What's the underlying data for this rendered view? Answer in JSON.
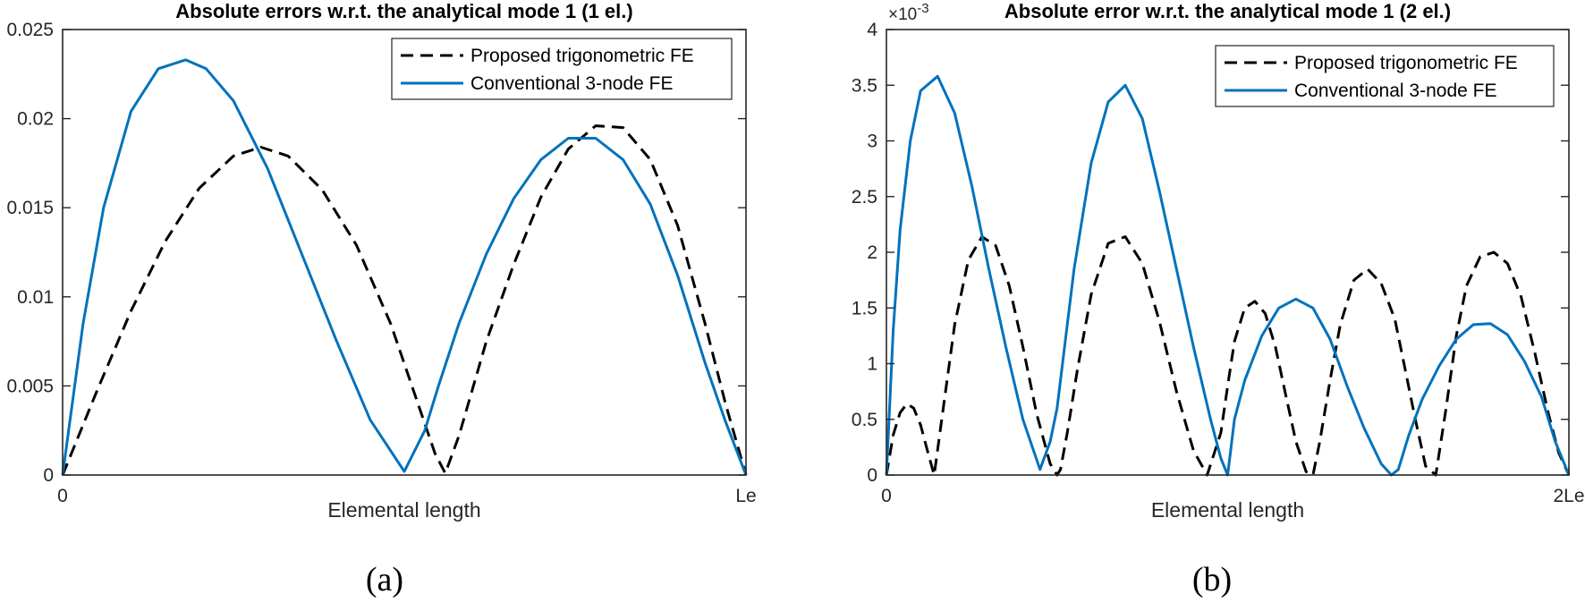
{
  "colors": {
    "proposed": "#000000",
    "conventional": "#0072bd"
  },
  "chart_data": [
    {
      "type": "line",
      "title": "Absolute errors w.r.t. the analytical mode 1  (1 el.)",
      "xlabel": "Elemental length",
      "ylabel": "",
      "caption": "(a)",
      "xlim": [
        0,
        1
      ],
      "ylim": [
        0,
        0.025
      ],
      "xticks": [
        {
          "value": 0,
          "label": "0"
        },
        {
          "value": 1,
          "label": "Le"
        }
      ],
      "yticks": [
        {
          "value": 0,
          "label": "0"
        },
        {
          "value": 0.005,
          "label": "0.005"
        },
        {
          "value": 0.01,
          "label": "0.01"
        },
        {
          "value": 0.015,
          "label": "0.015"
        },
        {
          "value": 0.02,
          "label": "0.02"
        },
        {
          "value": 0.025,
          "label": "0.025"
        }
      ],
      "y_exponent_label": "",
      "legend": "top-right",
      "series": [
        {
          "name": "Proposed trigonometric FE",
          "style": "dashed",
          "x": [
            0,
            0.05,
            0.1,
            0.15,
            0.2,
            0.25,
            0.29,
            0.33,
            0.38,
            0.43,
            0.48,
            0.52,
            0.545,
            0.56,
            0.58,
            0.62,
            0.66,
            0.7,
            0.74,
            0.78,
            0.82,
            0.86,
            0.9,
            0.94,
            0.97,
            1.0
          ],
          "y": [
            0,
            0.0047,
            0.0092,
            0.0131,
            0.0161,
            0.0179,
            0.0184,
            0.0179,
            0.016,
            0.0129,
            0.0085,
            0.004,
            0.0012,
            0.0001,
            0.0022,
            0.0075,
            0.0118,
            0.0156,
            0.0183,
            0.0196,
            0.0195,
            0.0177,
            0.014,
            0.0085,
            0.004,
            0.0
          ]
        },
        {
          "name": "Conventional 3-node FE",
          "style": "solid",
          "x": [
            0,
            0.03,
            0.06,
            0.1,
            0.14,
            0.18,
            0.21,
            0.25,
            0.3,
            0.35,
            0.4,
            0.45,
            0.5,
            0.53,
            0.55,
            0.58,
            0.62,
            0.66,
            0.7,
            0.74,
            0.78,
            0.82,
            0.86,
            0.9,
            0.94,
            0.97,
            1.0
          ],
          "y": [
            0,
            0.0085,
            0.015,
            0.0204,
            0.0228,
            0.0233,
            0.0228,
            0.021,
            0.0172,
            0.0124,
            0.0076,
            0.0031,
            0.0002,
            0.0025,
            0.005,
            0.0085,
            0.0124,
            0.0155,
            0.0177,
            0.0189,
            0.0189,
            0.0177,
            0.0152,
            0.0112,
            0.0063,
            0.003,
            0.0
          ]
        }
      ]
    },
    {
      "type": "line",
      "title": "Absolute error w.r.t. the analytical mode 1  (2 el.)",
      "xlabel": "Elemental length",
      "ylabel": "",
      "caption": "(b)",
      "xlim": [
        0,
        2
      ],
      "ylim": [
        0,
        4
      ],
      "xticks": [
        {
          "value": 0,
          "label": "0"
        },
        {
          "value": 2,
          "label": "2Le"
        }
      ],
      "yticks": [
        {
          "value": 0,
          "label": "0"
        },
        {
          "value": 0.5,
          "label": "0.5"
        },
        {
          "value": 1,
          "label": "1"
        },
        {
          "value": 1.5,
          "label": "1.5"
        },
        {
          "value": 2,
          "label": "2"
        },
        {
          "value": 2.5,
          "label": "2.5"
        },
        {
          "value": 3,
          "label": "3"
        },
        {
          "value": 3.5,
          "label": "3.5"
        },
        {
          "value": 4,
          "label": "4"
        }
      ],
      "y_exponent_label": "×10",
      "y_exponent_power": "-3",
      "legend": "top-right",
      "series": [
        {
          "name": "Proposed trigonometric FE",
          "style": "dashed",
          "x": [
            0,
            0.02,
            0.04,
            0.06,
            0.08,
            0.1,
            0.12,
            0.14,
            0.16,
            0.2,
            0.24,
            0.28,
            0.32,
            0.36,
            0.4,
            0.44,
            0.48,
            0.5,
            0.51,
            0.53,
            0.56,
            0.6,
            0.65,
            0.7,
            0.75,
            0.8,
            0.85,
            0.9,
            0.94,
            0.98,
            1.0,
            1.02,
            1.05,
            1.08,
            1.11,
            1.14,
            1.17,
            1.2,
            1.23,
            1.25,
            1.27,
            1.3,
            1.33,
            1.37,
            1.41,
            1.45,
            1.49,
            1.52,
            1.55,
            1.58,
            1.61,
            1.64,
            1.67,
            1.7,
            1.74,
            1.78,
            1.82,
            1.86,
            1.9,
            1.94,
            1.97,
            2.0
          ],
          "y": [
            0,
            0.36,
            0.56,
            0.64,
            0.6,
            0.45,
            0.22,
            0.0,
            0.45,
            1.35,
            1.93,
            2.14,
            2.06,
            1.7,
            1.15,
            0.55,
            0.1,
            0.0,
            0.05,
            0.38,
            0.95,
            1.62,
            2.08,
            2.14,
            1.9,
            1.38,
            0.75,
            0.22,
            0.0,
            0.38,
            0.8,
            1.2,
            1.5,
            1.56,
            1.45,
            1.15,
            0.72,
            0.3,
            0.03,
            0.0,
            0.3,
            0.85,
            1.35,
            1.75,
            1.85,
            1.72,
            1.4,
            0.95,
            0.5,
            0.08,
            0.0,
            0.6,
            1.25,
            1.7,
            1.96,
            2.0,
            1.9,
            1.6,
            1.1,
            0.55,
            0.2,
            0.0
          ]
        },
        {
          "name": "Conventional 3-node FE",
          "style": "solid",
          "x": [
            0,
            0.02,
            0.04,
            0.07,
            0.1,
            0.15,
            0.2,
            0.25,
            0.3,
            0.35,
            0.4,
            0.45,
            0.48,
            0.5,
            0.52,
            0.55,
            0.6,
            0.65,
            0.7,
            0.75,
            0.8,
            0.85,
            0.9,
            0.95,
            0.98,
            1.0,
            1.02,
            1.05,
            1.1,
            1.15,
            1.2,
            1.25,
            1.3,
            1.35,
            1.4,
            1.45,
            1.48,
            1.5,
            1.53,
            1.57,
            1.62,
            1.67,
            1.72,
            1.77,
            1.82,
            1.87,
            1.92,
            1.96,
            2.0
          ],
          "y": [
            0,
            1.3,
            2.2,
            3.0,
            3.45,
            3.58,
            3.25,
            2.6,
            1.85,
            1.15,
            0.5,
            0.05,
            0.3,
            0.6,
            1.1,
            1.85,
            2.8,
            3.35,
            3.5,
            3.2,
            2.55,
            1.85,
            1.15,
            0.5,
            0.15,
            0.0,
            0.5,
            0.85,
            1.25,
            1.5,
            1.58,
            1.5,
            1.22,
            0.8,
            0.42,
            0.1,
            0.0,
            0.05,
            0.35,
            0.68,
            0.98,
            1.22,
            1.35,
            1.36,
            1.26,
            1.02,
            0.7,
            0.3,
            0.0
          ]
        }
      ]
    }
  ]
}
